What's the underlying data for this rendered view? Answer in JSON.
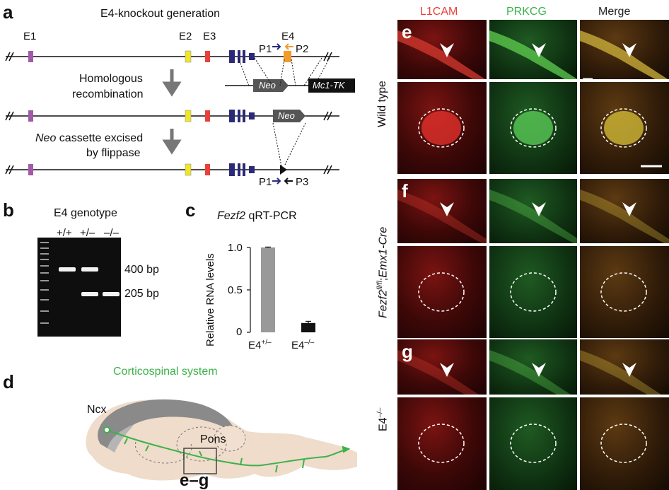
{
  "panel_a": {
    "label": "a",
    "title": "E4-knockout generation",
    "exons": [
      "E1",
      "E2",
      "E3",
      "E4"
    ],
    "primers": {
      "p1": "P1",
      "p2": "P2",
      "p3": "P3"
    },
    "step1_line1": "Homologous",
    "step1_line2": "recombination",
    "step2_line1_italic": "Neo",
    "step2_line1_rest": " cassette excised",
    "step2_line2": "by flippase",
    "neo": "Neo",
    "mc1tk": "Mc1-TK",
    "colors": {
      "e1": "#a15aa8",
      "e2": "#f0e628",
      "e3": "#e8413a",
      "blue": "#2b2a78",
      "e4": "#f39a2c",
      "arrow_orange": "#f39a2c",
      "arrow_blue": "#2b2a78"
    }
  },
  "panel_b": {
    "label": "b",
    "title": "E4 genotype",
    "lanes": [
      "+/+",
      "+/–",
      "–/–"
    ],
    "bands": [
      "400 bp",
      "205 bp"
    ]
  },
  "panel_c": {
    "label": "c",
    "title_italic": "Fezf2",
    "title_rest": " qRT-PCR",
    "ylabel": "Relative RNA levels",
    "yticks": [
      "0",
      "0.5",
      "1.0"
    ],
    "xlabels": [
      {
        "base": "E4",
        "sup": "+/–"
      },
      {
        "base": "E4",
        "sup": "–/–"
      }
    ]
  },
  "chart_data": {
    "type": "bar",
    "categories": [
      "E4+/–",
      "E4–/–"
    ],
    "values": [
      1.0,
      0.11
    ],
    "errors": [
      0.005,
      0.02
    ],
    "colors": [
      "#999999",
      "#111111"
    ],
    "title": "Fezf2 qRT-PCR",
    "xlabel": "",
    "ylabel": "Relative RNA levels",
    "ylim": [
      0,
      1.0
    ]
  },
  "panel_d": {
    "label": "d",
    "title": "Corticospinal system",
    "ncx": "Ncx",
    "pons": "Pons",
    "box_label": "e–g",
    "title_color": "#3bb24a"
  },
  "micrographs": {
    "columns": [
      "L1CAM",
      "PRKCG",
      "Merge"
    ],
    "column_colors": [
      "#e8413a",
      "#3bb24a",
      "#222222"
    ],
    "rows": [
      {
        "label": "e",
        "side": "Wild type"
      },
      {
        "label": "f",
        "side_italic": "Fezf2",
        "side_sup": "fl/fl",
        "side_rest": ";",
        "side_italic2": "Emx1-Cre"
      },
      {
        "label": "g",
        "side_base": "E4",
        "side_sup": "–/–"
      }
    ]
  }
}
